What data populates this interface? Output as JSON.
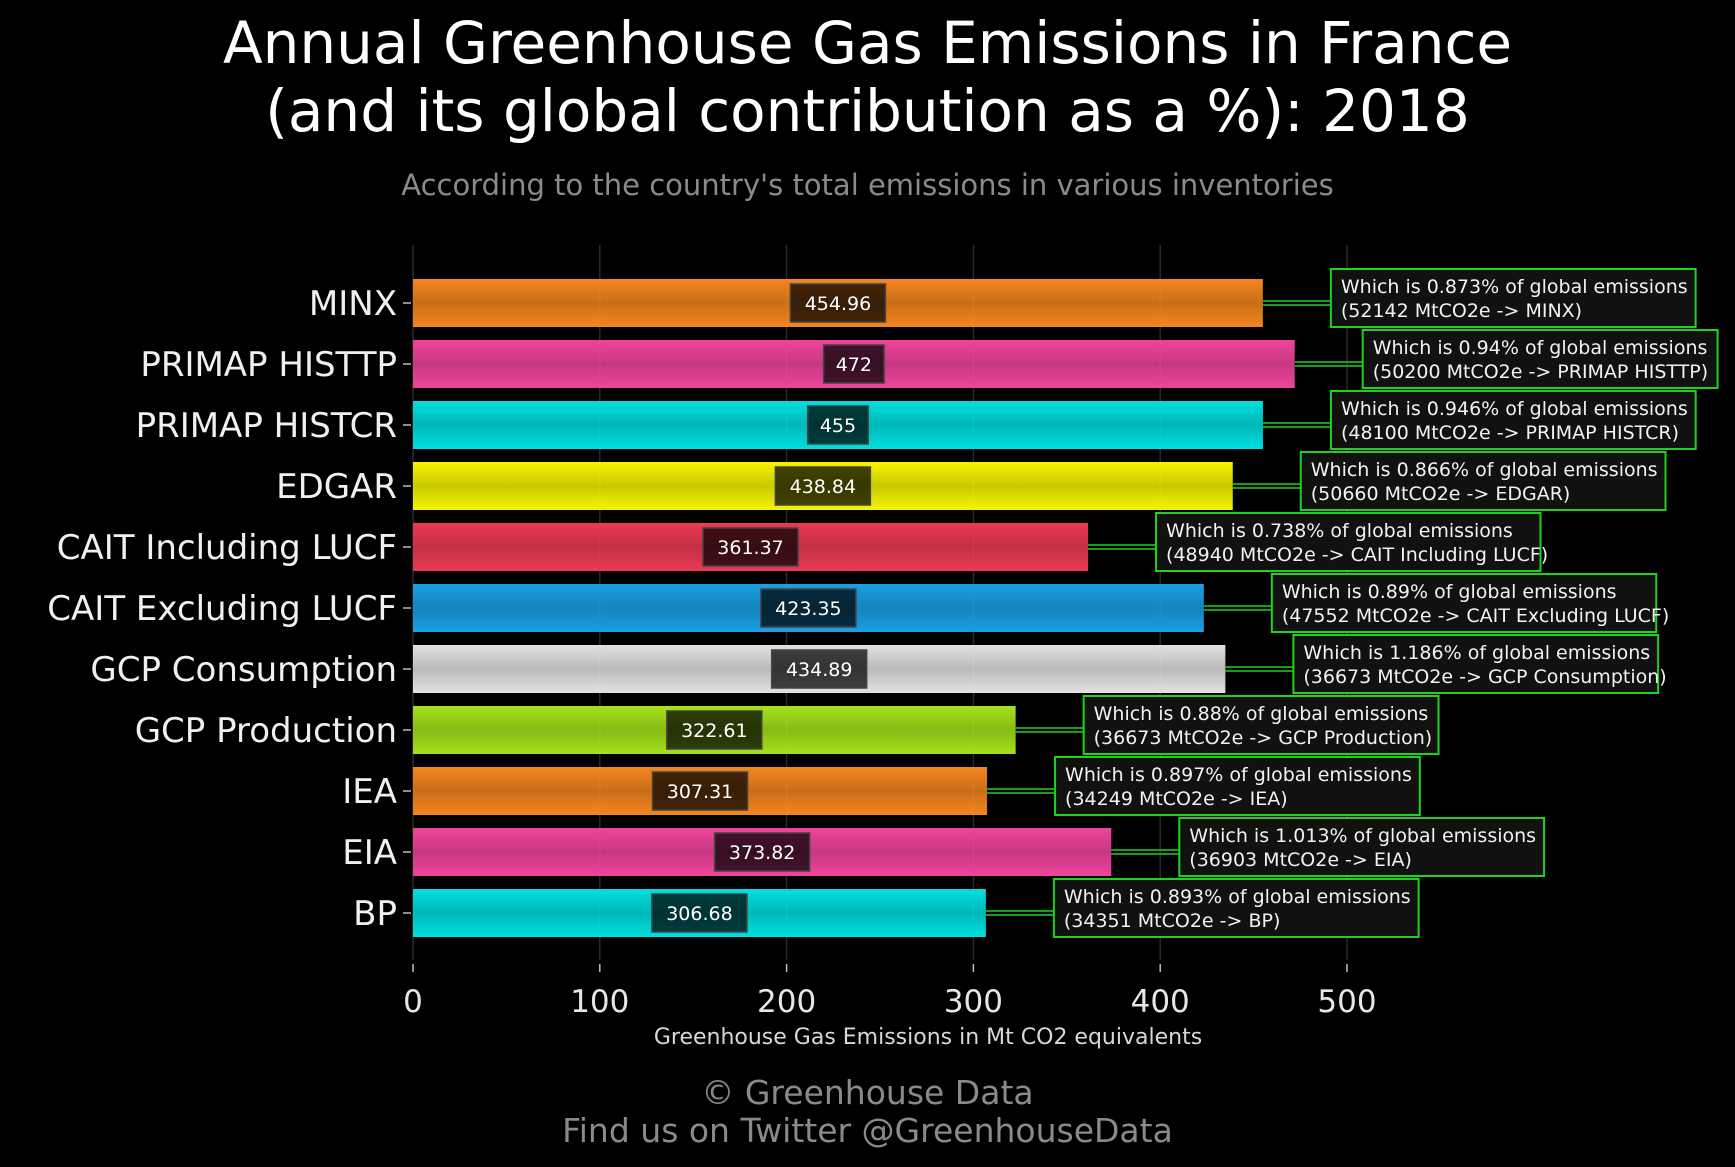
{
  "title_line1": "Annual Greenhouse Gas Emissions in France",
  "title_line2": "(and its global contribution as a %): 2018",
  "subtitle": "According to the country's total emissions in various inventories",
  "footer_line1": "© Greenhouse Data",
  "footer_line2": "Find us on Twitter @GreenhouseData",
  "chart_data": {
    "type": "bar",
    "orientation": "horizontal",
    "xlabel": "Greenhouse Gas Emissions in Mt CO2 equivalents",
    "ylabel": "",
    "xlim": [
      0,
      550
    ],
    "xticks": [
      0,
      100,
      200,
      300,
      400,
      500
    ],
    "grid": true,
    "categories": [
      "MINX",
      "PRIMAP HISTTP",
      "PRIMAP HISTCR",
      "EDGAR",
      "CAIT Including LUCF",
      "CAIT Excluding LUCF",
      "GCP Consumption",
      "GCP Production",
      "IEA",
      "EIA",
      "BP"
    ],
    "values": [
      454.96,
      472,
      455,
      438.84,
      361.37,
      423.35,
      434.89,
      322.61,
      307.31,
      373.82,
      306.68
    ],
    "value_labels": [
      "454.96",
      "472",
      "455",
      "438.84",
      "361.37",
      "423.35",
      "434.89",
      "322.61",
      "307.31",
      "373.82",
      "306.68"
    ],
    "colors": [
      "#f5861e",
      "#f0449c",
      "#00dfe0",
      "#f5f500",
      "#ec3a53",
      "#1aa0e6",
      "#e2e2e2",
      "#a5e21a",
      "#f5861e",
      "#f0449c",
      "#00dfe0"
    ],
    "annotations": [
      {
        "line1": "Which is 0.873% of global emissions",
        "line2": "(52142 MtCO2e -> MINX)"
      },
      {
        "line1": "Which is 0.94% of global emissions",
        "line2": "(50200 MtCO2e -> PRIMAP HISTTP)"
      },
      {
        "line1": "Which is 0.946% of global emissions",
        "line2": "(48100 MtCO2e -> PRIMAP HISTCR)"
      },
      {
        "line1": "Which is 0.866% of global emissions",
        "line2": "(50660 MtCO2e -> EDGAR)"
      },
      {
        "line1": "Which is 0.738% of global emissions",
        "line2": "(48940 MtCO2e -> CAIT Including LUCF)"
      },
      {
        "line1": "Which is 0.89% of global emissions",
        "line2": "(47552 MtCO2e -> CAIT Excluding LUCF)"
      },
      {
        "line1": "Which is 1.186% of global emissions",
        "line2": "(36673 MtCO2e -> GCP Consumption)"
      },
      {
        "line1": "Which is 0.88% of global emissions",
        "line2": "(36673 MtCO2e -> GCP Production)"
      },
      {
        "line1": "Which is 0.897% of global emissions",
        "line2": "(34249 MtCO2e -> IEA)"
      },
      {
        "line1": "Which is 1.013% of global emissions",
        "line2": "(36903 MtCO2e -> EIA)"
      },
      {
        "line1": "Which is 0.893% of global emissions",
        "line2": "(34351 MtCO2e -> BP)"
      }
    ],
    "annotation_border_color": "#1ed21e",
    "annotation_bg_color": "#111111"
  }
}
